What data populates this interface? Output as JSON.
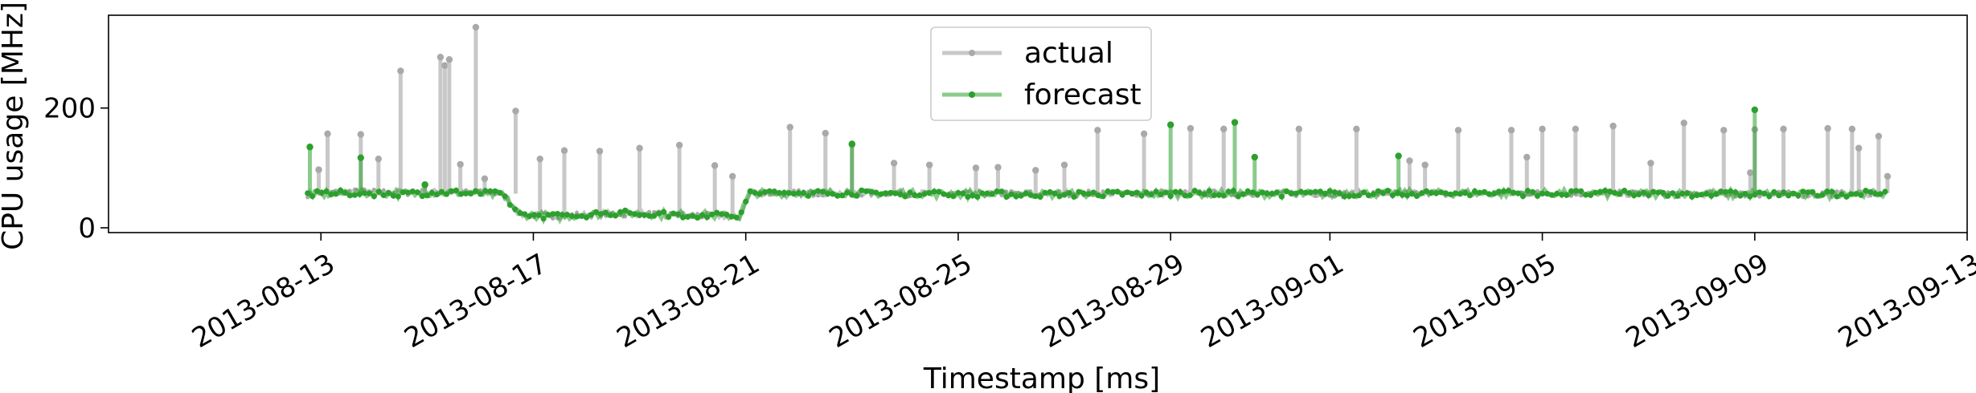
{
  "chart_data": {
    "type": "line",
    "title": "",
    "xlabel": "Timestamp [ms]",
    "ylabel": "CPU usage [MHz]",
    "x_type": "date",
    "xlim": [
      "2013-08-09T00:00",
      "2013-09-13"
    ],
    "ylim": [
      -8,
      355
    ],
    "x_ticks": [
      "2013-08-13",
      "2013-08-17",
      "2013-08-21",
      "2013-08-25",
      "2013-08-29",
      "2013-09-01",
      "2013-09-05",
      "2013-09-09",
      "2013-09-13"
    ],
    "y_ticks": [
      0,
      200
    ],
    "grid": false,
    "legend": {
      "location": "top-center"
    },
    "series": [
      {
        "name": "actual",
        "color": "#c8c8c8",
        "marker_color": "#a9a9a9",
        "baseline": [
          [
            "2013-08-12T18:00",
            56
          ],
          [
            "2013-08-13T12:00",
            60
          ],
          [
            "2013-08-14T12:00",
            59
          ],
          [
            "2013-08-15T12:00",
            60
          ],
          [
            "2013-08-16T10:00",
            57
          ],
          [
            "2013-08-16T18:00",
            22
          ],
          [
            "2013-08-17T12:00",
            20
          ],
          [
            "2013-08-18T12:00",
            24
          ],
          [
            "2013-08-19T12:00",
            22
          ],
          [
            "2013-08-20T12:00",
            20
          ],
          [
            "2013-08-20T21:00",
            18
          ],
          [
            "2013-08-21T02:00",
            58
          ],
          [
            "2013-08-23T00:00",
            58
          ],
          [
            "2013-08-26T00:00",
            57
          ],
          [
            "2013-08-29T00:00",
            58
          ],
          [
            "2013-09-01T00:00",
            57
          ],
          [
            "2013-09-04T00:00",
            58
          ],
          [
            "2013-09-07T00:00",
            57
          ],
          [
            "2013-09-10T00:00",
            56
          ],
          [
            "2013-09-11T12:00",
            58
          ]
        ],
        "spikes": [
          [
            "2013-08-12T23:00",
            97
          ],
          [
            "2013-08-13T03:00",
            157
          ],
          [
            "2013-08-13T18:00",
            156
          ],
          [
            "2013-08-14T02:00",
            115
          ],
          [
            "2013-08-14T12:00",
            262
          ],
          [
            "2013-08-14T23:00",
            72
          ],
          [
            "2013-08-15T06:00",
            285
          ],
          [
            "2013-08-15T08:00",
            271
          ],
          [
            "2013-08-15T10:00",
            281
          ],
          [
            "2013-08-15T15:00",
            106
          ],
          [
            "2013-08-15T22:00",
            335
          ],
          [
            "2013-08-16T02:00",
            82
          ],
          [
            "2013-08-16T16:00",
            195
          ],
          [
            "2013-08-17T03:00",
            115
          ],
          [
            "2013-08-17T14:00",
            129
          ],
          [
            "2013-08-18T06:00",
            128
          ],
          [
            "2013-08-19T00:00",
            133
          ],
          [
            "2013-08-19T18:00",
            138
          ],
          [
            "2013-08-20T10:00",
            104
          ],
          [
            "2013-08-20T18:00",
            86
          ],
          [
            "2013-08-21T20:00",
            168
          ],
          [
            "2013-08-22T12:00",
            158
          ],
          [
            "2013-08-23T00:00",
            139
          ],
          [
            "2013-08-23T19:00",
            108
          ],
          [
            "2013-08-24T11:00",
            105
          ],
          [
            "2013-08-25T08:00",
            100
          ],
          [
            "2013-08-25T18:00",
            101
          ],
          [
            "2013-08-26T11:00",
            96
          ],
          [
            "2013-08-27T00:00",
            105
          ],
          [
            "2013-08-27T15:00",
            163
          ],
          [
            "2013-08-28T12:00",
            157
          ],
          [
            "2013-08-29T09:00",
            166
          ],
          [
            "2013-08-30T00:00",
            165
          ],
          [
            "2013-08-31T10:00",
            165
          ],
          [
            "2013-09-01T12:00",
            165
          ],
          [
            "2013-09-02T12:00",
            112
          ],
          [
            "2013-09-02T19:00",
            105
          ],
          [
            "2013-09-03T10:00",
            163
          ],
          [
            "2013-09-04T10:00",
            163
          ],
          [
            "2013-09-04T17:00",
            118
          ],
          [
            "2013-09-05T00:00",
            165
          ],
          [
            "2013-09-05T15:00",
            165
          ],
          [
            "2013-09-06T08:00",
            170
          ],
          [
            "2013-09-07T01:00",
            108
          ],
          [
            "2013-09-07T16:00",
            175
          ],
          [
            "2013-09-08T10:00",
            163
          ],
          [
            "2013-09-08T22:00",
            92
          ],
          [
            "2013-09-09T00:00",
            164
          ],
          [
            "2013-09-09T13:00",
            165
          ],
          [
            "2013-09-10T09:00",
            166
          ],
          [
            "2013-09-10T20:00",
            165
          ],
          [
            "2013-09-10T23:00",
            133
          ],
          [
            "2013-09-11T08:00",
            153
          ],
          [
            "2013-09-11T12:00",
            86
          ]
        ]
      },
      {
        "name": "forecast",
        "color": "#2ca02c",
        "baseline": [
          [
            "2013-08-12T18:00",
            56
          ],
          [
            "2013-08-13T12:00",
            58
          ],
          [
            "2013-08-14T12:00",
            57
          ],
          [
            "2013-08-15T12:00",
            59
          ],
          [
            "2013-08-16T10:00",
            56
          ],
          [
            "2013-08-16T18:00",
            22
          ],
          [
            "2013-08-17T12:00",
            19
          ],
          [
            "2013-08-18T12:00",
            25
          ],
          [
            "2013-08-19T12:00",
            22
          ],
          [
            "2013-08-20T12:00",
            21
          ],
          [
            "2013-08-20T21:00",
            19
          ],
          [
            "2013-08-21T02:00",
            58
          ],
          [
            "2013-08-23T00:00",
            58
          ],
          [
            "2013-08-26T00:00",
            56
          ],
          [
            "2013-08-29T00:00",
            57
          ],
          [
            "2013-09-01T00:00",
            57
          ],
          [
            "2013-09-04T00:00",
            58
          ],
          [
            "2013-09-07T00:00",
            57
          ],
          [
            "2013-09-10T00:00",
            56
          ],
          [
            "2013-09-11T12:00",
            58
          ]
        ],
        "spikes": [
          [
            "2013-08-12T19:00",
            135
          ],
          [
            "2013-08-13T18:00",
            117
          ],
          [
            "2013-08-14T23:00",
            72
          ],
          [
            "2013-08-23T00:00",
            140
          ],
          [
            "2013-08-29T00:00",
            172
          ],
          [
            "2013-08-30T05:00",
            176
          ],
          [
            "2013-08-30T14:00",
            118
          ],
          [
            "2013-09-02T07:00",
            120
          ],
          [
            "2013-09-09T00:00",
            197
          ]
        ]
      }
    ]
  }
}
